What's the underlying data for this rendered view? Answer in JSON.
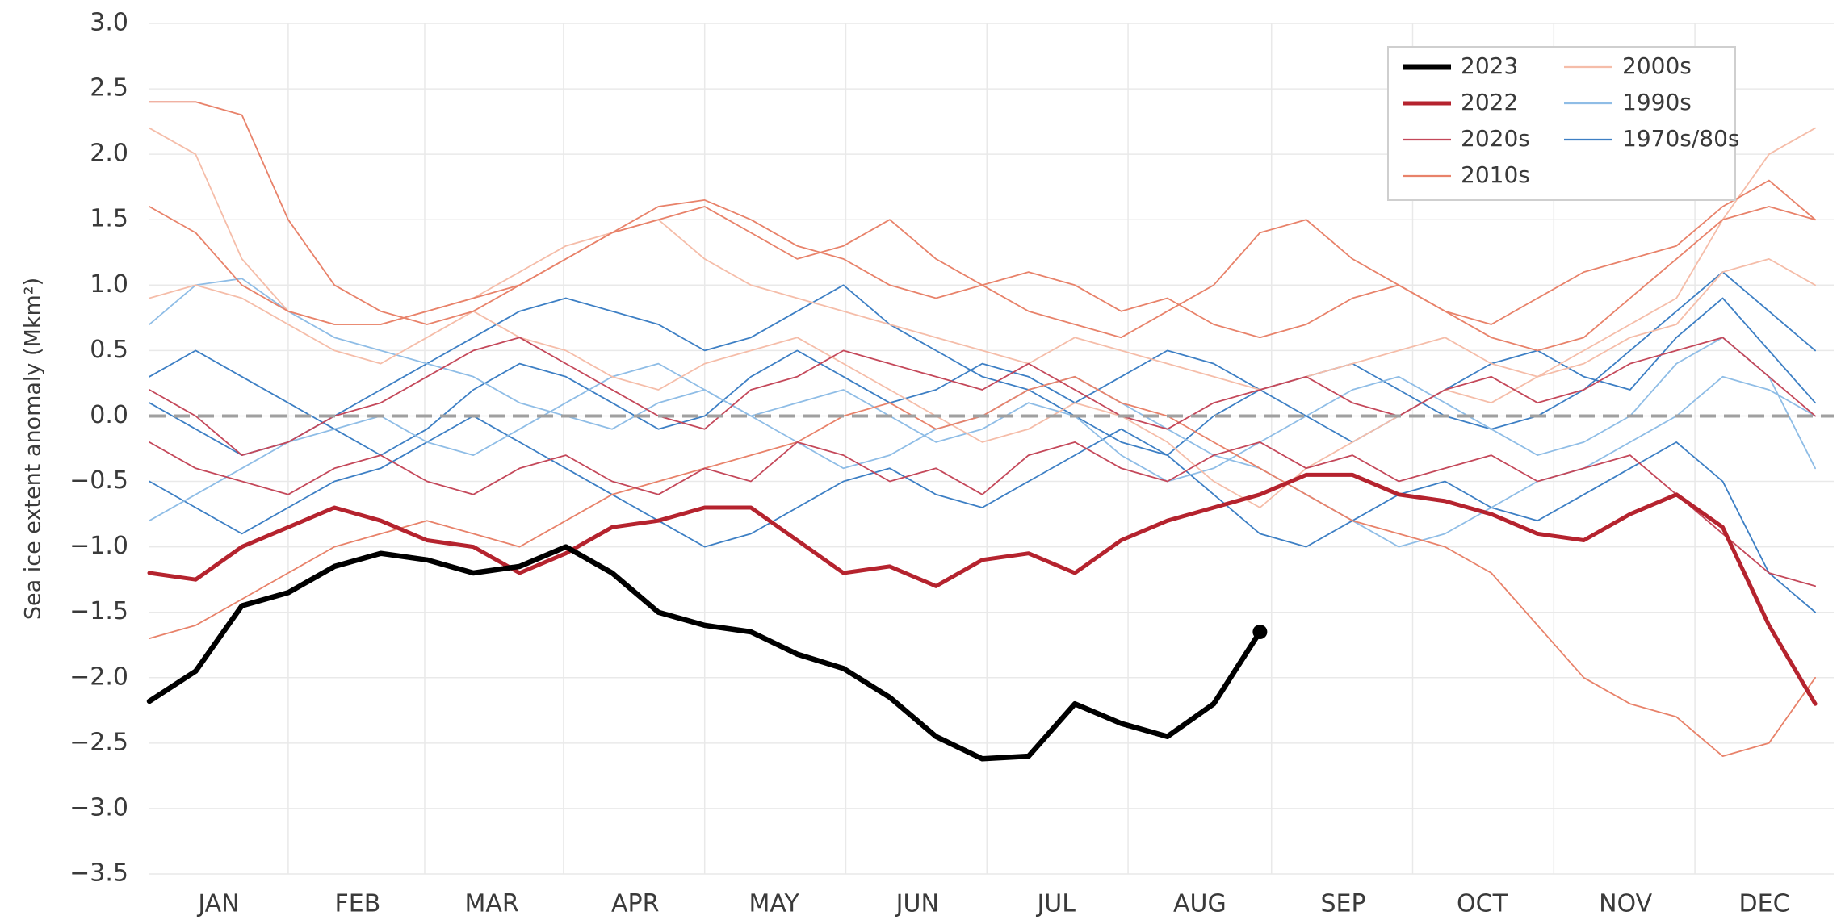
{
  "chart_data": {
    "type": "line",
    "y_label": "Sea ice extent anomaly (Mkm²)",
    "xlim": [
      1,
      365
    ],
    "xticks": [
      {
        "value": 16,
        "label": "JAN"
      },
      {
        "value": 46,
        "label": "FEB"
      },
      {
        "value": 75,
        "label": "MAR"
      },
      {
        "value": 106,
        "label": "APR"
      },
      {
        "value": 136,
        "label": "MAY"
      },
      {
        "value": 167,
        "label": "JUN"
      },
      {
        "value": 197,
        "label": "JUL"
      },
      {
        "value": 228,
        "label": "AUG"
      },
      {
        "value": 259,
        "label": "SEP"
      },
      {
        "value": 289,
        "label": "OCT"
      },
      {
        "value": 320,
        "label": "NOV"
      },
      {
        "value": 350,
        "label": "DEC"
      }
    ],
    "ylim": [
      -3.5,
      3.0
    ],
    "yticks": [
      {
        "value": -3.5,
        "label": "−3.5"
      },
      {
        "value": -3.0,
        "label": "−3.0"
      },
      {
        "value": -2.5,
        "label": "−2.5"
      },
      {
        "value": -2.0,
        "label": "−2.0"
      },
      {
        "value": -1.5,
        "label": "−1.5"
      },
      {
        "value": -1.0,
        "label": "−1.0"
      },
      {
        "value": -0.5,
        "label": "−0.5"
      },
      {
        "value": 0,
        "label": "0.0"
      },
      0.5,
      {
        "value": 1.0,
        "label": "1.0"
      },
      1.5,
      {
        "value": 2.0,
        "label": "2.0"
      },
      2.5,
      {
        "value": 3.0,
        "label": "3.0"
      }
    ],
    "grid": true,
    "reference_line": 0,
    "legend_position": "top-right",
    "x": [
      1,
      11,
      21,
      31,
      41,
      51,
      61,
      71,
      81,
      91,
      101,
      111,
      121,
      131,
      141,
      151,
      161,
      171,
      181,
      191,
      201,
      211,
      221,
      231,
      241,
      251,
      261,
      271,
      281,
      291,
      301,
      311,
      321,
      331,
      341,
      351,
      361
    ],
    "series": [
      {
        "name": "2023",
        "color": "#000000",
        "values": [
          -2.18,
          -1.95,
          -1.45,
          -1.35,
          -1.15,
          -1.05,
          -1.1,
          -1.2,
          -1.15,
          -1.0,
          -1.2,
          -1.5,
          -1.6,
          -1.65,
          -1.82,
          -1.93,
          -2.15,
          -2.45,
          -2.62,
          -2.6,
          -2.2,
          -2.35,
          -2.45,
          -2.2,
          -1.65,
          null,
          null,
          null,
          null,
          null,
          null,
          null,
          null,
          null,
          null,
          null,
          null
        ]
      },
      {
        "name": "2022",
        "color": "#b5232e",
        "values": [
          -1.2,
          -1.25,
          -1.0,
          -0.85,
          -0.7,
          -0.8,
          -0.95,
          -1.0,
          -1.2,
          -1.05,
          -0.85,
          -0.8,
          -0.7,
          -0.7,
          -0.95,
          -1.2,
          -1.15,
          -1.3,
          -1.1,
          -1.05,
          -1.2,
          -0.95,
          -0.8,
          -0.7,
          -0.6,
          -0.45,
          -0.45,
          -0.6,
          -0.65,
          -0.75,
          -0.9,
          -0.95,
          -0.75,
          -0.6,
          -0.85,
          -1.6,
          -2.2
        ]
      },
      {
        "name": "2020s",
        "color": "#c4485a",
        "lines": [
          [
            0.2,
            0.0,
            -0.3,
            -0.2,
            0.0,
            0.1,
            0.3,
            0.5,
            0.6,
            0.4,
            0.2,
            0.0,
            -0.1,
            0.2,
            0.3,
            0.5,
            0.4,
            0.3,
            0.2,
            0.4,
            0.2,
            0.0,
            -0.1,
            0.1,
            0.2,
            0.3,
            0.1,
            0.0,
            0.2,
            0.3,
            0.1,
            0.2,
            0.4,
            0.5,
            0.6,
            0.3,
            0.0
          ],
          [
            -0.2,
            -0.4,
            -0.5,
            -0.6,
            -0.4,
            -0.3,
            -0.5,
            -0.6,
            -0.4,
            -0.3,
            -0.5,
            -0.6,
            -0.4,
            -0.5,
            -0.2,
            -0.3,
            -0.5,
            -0.4,
            -0.6,
            -0.3,
            -0.2,
            -0.4,
            -0.5,
            -0.3,
            -0.2,
            -0.4,
            -0.3,
            -0.5,
            -0.4,
            -0.3,
            -0.5,
            -0.4,
            -0.3,
            -0.6,
            -0.9,
            -1.2,
            -1.3
          ]
        ]
      },
      {
        "name": "2010s",
        "color": "#e8826a",
        "lines": [
          [
            2.4,
            2.4,
            2.3,
            1.5,
            1.0,
            0.8,
            0.7,
            0.8,
            1.0,
            1.2,
            1.4,
            1.6,
            1.65,
            1.5,
            1.3,
            1.2,
            1.0,
            0.9,
            1.0,
            0.8,
            0.7,
            0.6,
            0.8,
            1.0,
            1.4,
            1.5,
            1.2,
            1.0,
            0.8,
            0.7,
            0.9,
            1.1,
            1.2,
            1.3,
            1.6,
            1.8,
            1.5
          ],
          [
            -1.7,
            -1.6,
            -1.4,
            -1.2,
            -1.0,
            -0.9,
            -0.8,
            -0.9,
            -1.0,
            -0.8,
            -0.6,
            -0.5,
            -0.4,
            -0.3,
            -0.2,
            0.0,
            0.1,
            -0.1,
            0.0,
            0.2,
            0.3,
            0.1,
            0.0,
            -0.2,
            -0.4,
            -0.6,
            -0.8,
            -0.9,
            -1.0,
            -1.2,
            -1.6,
            -2.0,
            -2.2,
            -2.3,
            -2.6,
            -2.5,
            -2.0
          ],
          [
            1.6,
            1.4,
            1.0,
            0.8,
            0.7,
            0.7,
            0.8,
            0.9,
            1.0,
            1.2,
            1.4,
            1.5,
            1.6,
            1.4,
            1.2,
            1.3,
            1.5,
            1.2,
            1.0,
            1.1,
            1.0,
            0.8,
            0.9,
            0.7,
            0.6,
            0.7,
            0.9,
            1.0,
            0.8,
            0.6,
            0.5,
            0.6,
            0.9,
            1.2,
            1.5,
            1.6,
            1.5
          ]
        ]
      },
      {
        "name": "2000s",
        "color": "#f5bda9",
        "lines": [
          [
            2.2,
            2.0,
            1.2,
            0.8,
            0.7,
            0.7,
            0.8,
            0.9,
            1.1,
            1.3,
            1.4,
            1.5,
            1.2,
            1.0,
            0.9,
            0.8,
            0.7,
            0.6,
            0.5,
            0.4,
            0.6,
            0.5,
            0.4,
            0.3,
            0.2,
            0.3,
            0.4,
            0.5,
            0.6,
            0.4,
            0.3,
            0.5,
            0.7,
            0.9,
            1.5,
            2.0,
            2.2
          ],
          [
            0.9,
            1.0,
            0.9,
            0.7,
            0.5,
            0.4,
            0.6,
            0.8,
            0.6,
            0.5,
            0.3,
            0.2,
            0.4,
            0.5,
            0.6,
            0.4,
            0.2,
            0.0,
            -0.2,
            -0.1,
            0.1,
            0.0,
            -0.2,
            -0.5,
            -0.7,
            -0.4,
            -0.2,
            0.0,
            0.2,
            0.1,
            0.3,
            0.4,
            0.6,
            0.7,
            1.1,
            1.2,
            1.0
          ]
        ]
      },
      {
        "name": "1990s",
        "color": "#8fbde6",
        "lines": [
          [
            0.7,
            1.0,
            1.05,
            0.8,
            0.6,
            0.5,
            0.4,
            0.3,
            0.1,
            0.0,
            -0.1,
            0.1,
            0.2,
            0.0,
            -0.2,
            -0.4,
            -0.3,
            -0.1,
            0.0,
            0.2,
            0.3,
            0.1,
            -0.1,
            -0.3,
            -0.4,
            -0.6,
            -0.8,
            -1.0,
            -0.9,
            -0.7,
            -0.5,
            -0.4,
            -0.2,
            0.0,
            0.3,
            0.2,
            0.0
          ],
          [
            -0.8,
            -0.6,
            -0.4,
            -0.2,
            -0.1,
            0.0,
            -0.2,
            -0.3,
            -0.1,
            0.1,
            0.3,
            0.4,
            0.2,
            0.0,
            0.1,
            0.2,
            0.0,
            -0.2,
            -0.1,
            0.1,
            0.0,
            -0.3,
            -0.5,
            -0.4,
            -0.2,
            0.0,
            0.2,
            0.3,
            0.1,
            -0.1,
            -0.3,
            -0.2,
            0.0,
            0.4,
            0.6,
            0.3,
            -0.4
          ]
        ]
      },
      {
        "name": "1970s/80s",
        "color": "#3d7fc4",
        "lines": [
          [
            0.1,
            -0.1,
            -0.3,
            -0.2,
            0.0,
            0.2,
            0.4,
            0.6,
            0.8,
            0.9,
            0.8,
            0.7,
            0.5,
            0.6,
            0.8,
            1.0,
            0.7,
            0.5,
            0.3,
            0.2,
            0.0,
            -0.2,
            -0.3,
            0.0,
            0.2,
            0.3,
            0.4,
            0.2,
            0.0,
            -0.1,
            0.0,
            0.2,
            0.5,
            0.8,
            1.1,
            0.8,
            0.5
          ],
          [
            -0.5,
            -0.7,
            -0.9,
            -0.7,
            -0.5,
            -0.4,
            -0.2,
            0.0,
            -0.2,
            -0.4,
            -0.6,
            -0.8,
            -1.0,
            -0.9,
            -0.7,
            -0.5,
            -0.4,
            -0.6,
            -0.7,
            -0.5,
            -0.3,
            -0.1,
            -0.3,
            -0.6,
            -0.9,
            -1.0,
            -0.8,
            -0.6,
            -0.5,
            -0.7,
            -0.8,
            -0.6,
            -0.4,
            -0.2,
            -0.5,
            -1.2,
            -1.5
          ],
          [
            0.3,
            0.5,
            0.3,
            0.1,
            -0.1,
            -0.3,
            -0.1,
            0.2,
            0.4,
            0.3,
            0.1,
            -0.1,
            0.0,
            0.3,
            0.5,
            0.3,
            0.1,
            0.2,
            0.4,
            0.3,
            0.1,
            0.3,
            0.5,
            0.4,
            0.2,
            0.0,
            -0.2,
            0.0,
            0.2,
            0.4,
            0.5,
            0.3,
            0.2,
            0.6,
            0.9,
            0.5,
            0.1
          ]
        ]
      }
    ]
  }
}
